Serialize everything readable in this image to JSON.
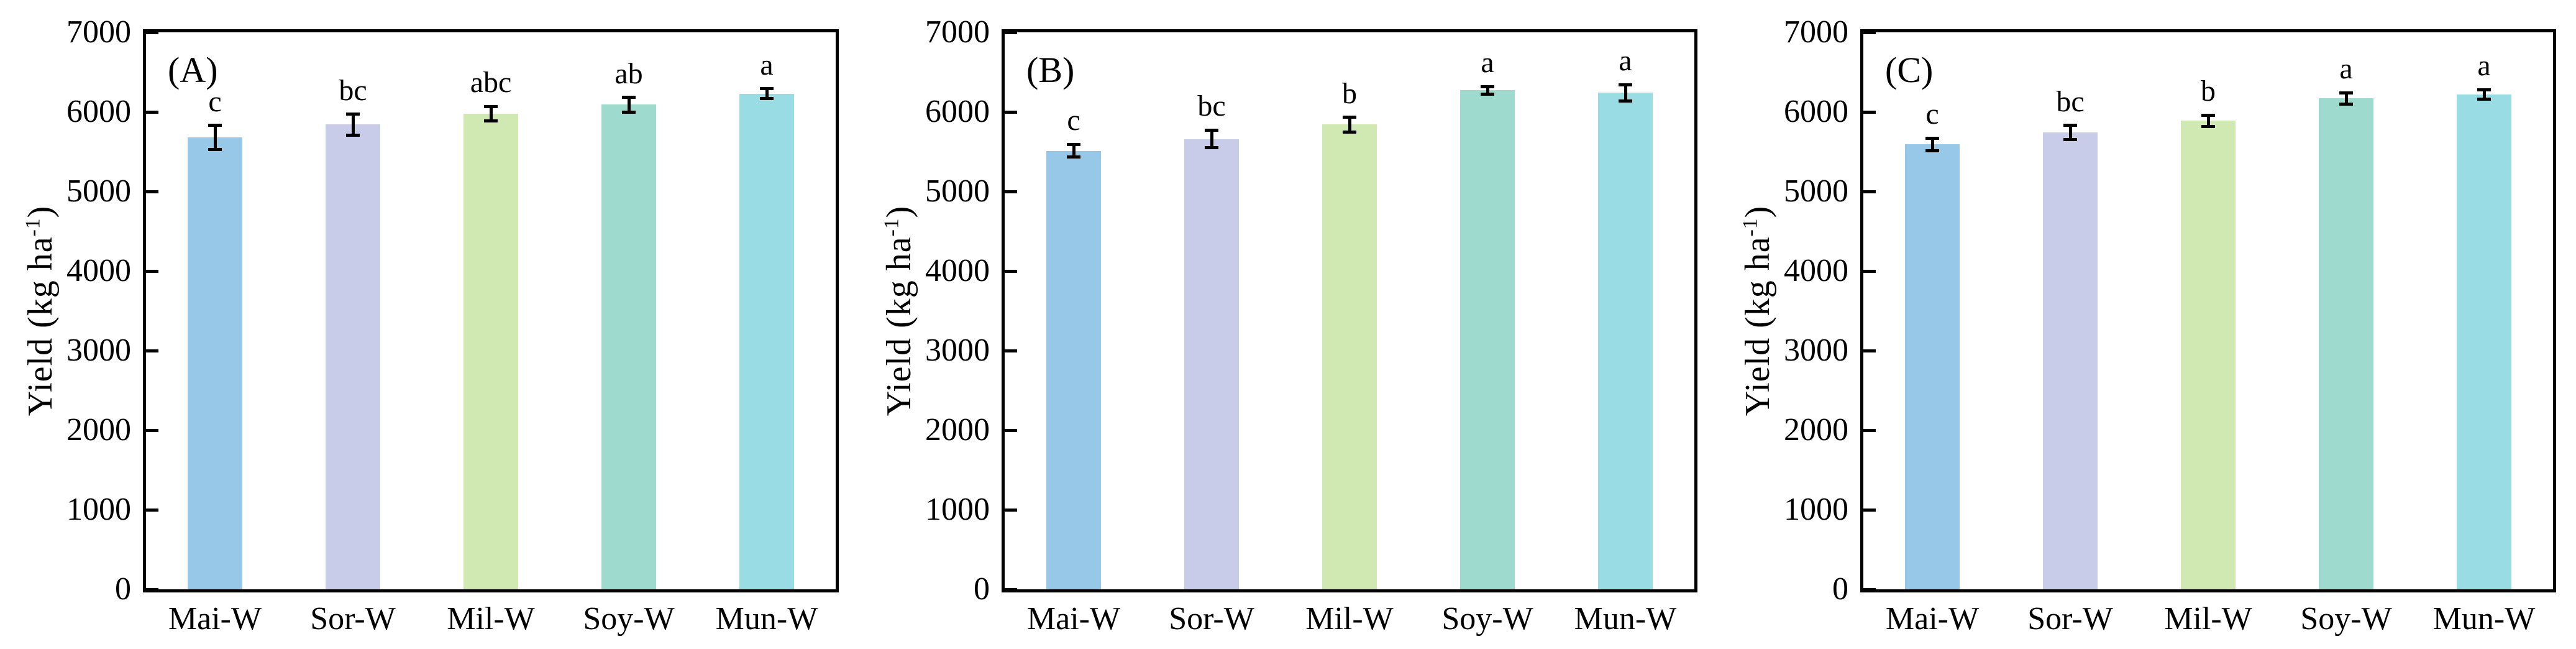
{
  "figure": {
    "background": "#ffffff",
    "axis_color": "#000000",
    "bar_colors": [
      "#98C8E8",
      "#C9CCE8",
      "#D0E8B1",
      "#9EDACE",
      "#99DCE4"
    ],
    "ylabel_parts": {
      "main": "Yield (kg ha",
      "sup": "-1",
      "end": ")"
    }
  },
  "chart_data": [
    {
      "type": "bar",
      "panel_label": "(A)",
      "title": "",
      "xlabel": "",
      "ylabel": "Yield (kg ha⁻¹)",
      "categories": [
        "Mai-W",
        "Sor-W",
        "Mil-W",
        "Soy-W",
        "Mun-W"
      ],
      "values": [
        5680,
        5840,
        5980,
        6090,
        6230
      ],
      "errors": [
        150,
        130,
        90,
        90,
        60
      ],
      "sig_letters": [
        "c",
        "bc",
        "abc",
        "ab",
        "a"
      ],
      "ylim": [
        0,
        7000
      ],
      "yticks": [
        0,
        1000,
        2000,
        3000,
        4000,
        5000,
        6000,
        7000
      ],
      "grid": false,
      "legend": null
    },
    {
      "type": "bar",
      "panel_label": "(B)",
      "title": "",
      "xlabel": "",
      "ylabel": "Yield (kg ha⁻¹)",
      "categories": [
        "Mai-W",
        "Sor-W",
        "Mil-W",
        "Soy-W",
        "Mun-W"
      ],
      "values": [
        5510,
        5660,
        5840,
        6270,
        6240
      ],
      "errors": [
        80,
        110,
        90,
        50,
        100
      ],
      "sig_letters": [
        "c",
        "bc",
        "b",
        "a",
        "a"
      ],
      "ylim": [
        0,
        7000
      ],
      "yticks": [
        0,
        1000,
        2000,
        3000,
        4000,
        5000,
        6000,
        7000
      ],
      "grid": false,
      "legend": null
    },
    {
      "type": "bar",
      "panel_label": "(C)",
      "title": "",
      "xlabel": "",
      "ylabel": "Yield (kg ha⁻¹)",
      "categories": [
        "Mai-W",
        "Sor-W",
        "Mil-W",
        "Soy-W",
        "Mun-W"
      ],
      "values": [
        5590,
        5740,
        5890,
        6170,
        6220
      ],
      "errors": [
        80,
        90,
        70,
        70,
        60
      ],
      "sig_letters": [
        "c",
        "bc",
        "b",
        "a",
        "a"
      ],
      "ylim": [
        0,
        7000
      ],
      "yticks": [
        0,
        1000,
        2000,
        3000,
        4000,
        5000,
        6000,
        7000
      ],
      "grid": false,
      "legend": null
    }
  ]
}
